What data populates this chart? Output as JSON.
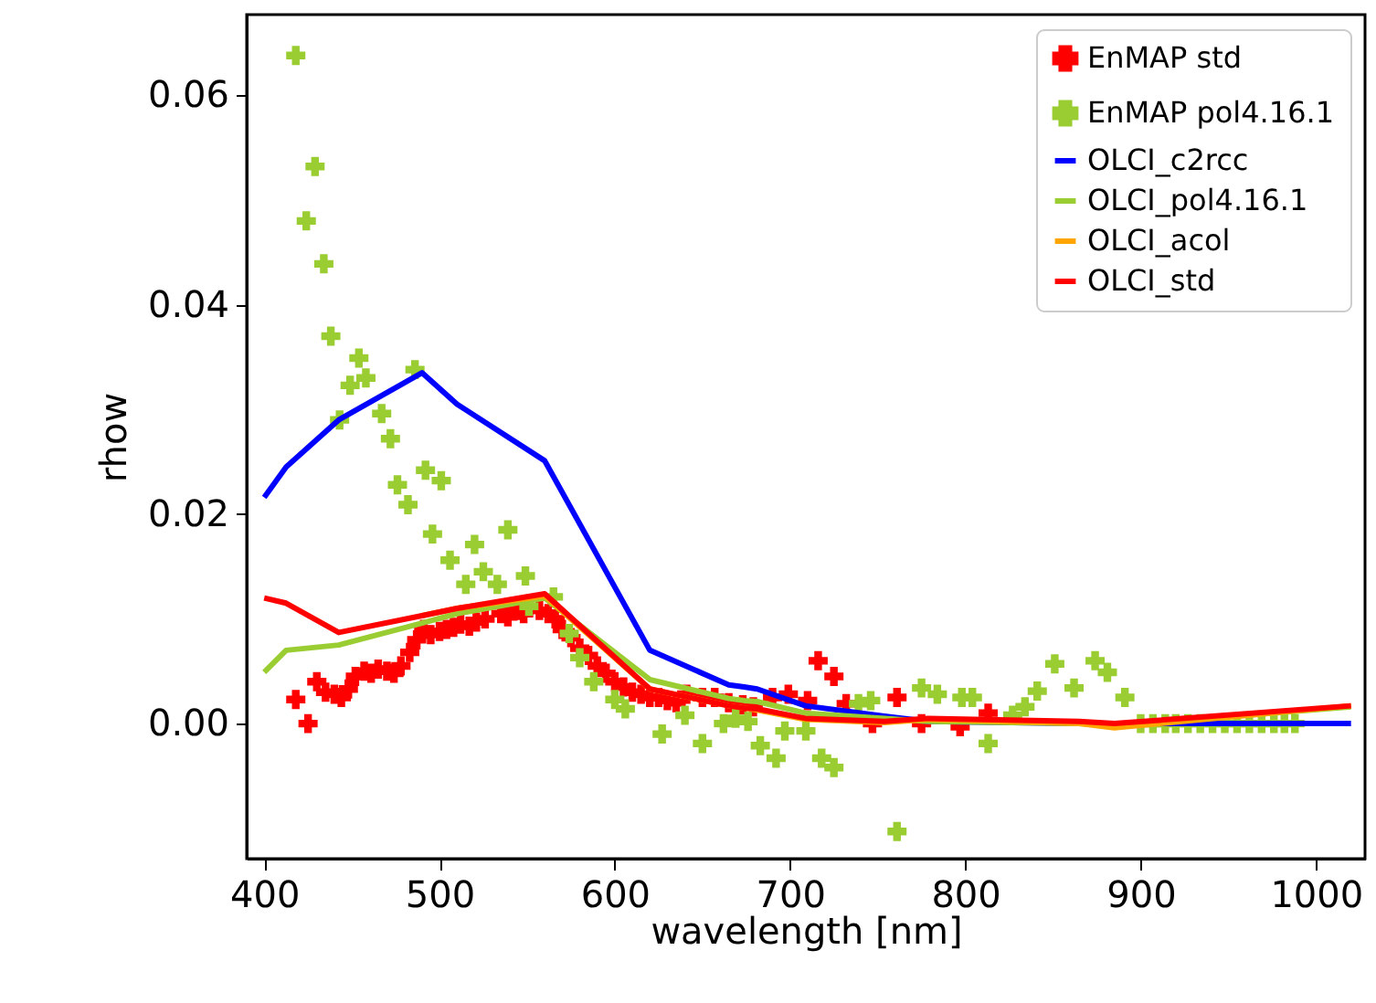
{
  "chart_data": {
    "type": "line",
    "xlabel": "wavelength [nm]",
    "ylabel": "rhow",
    "xlim": [
      390,
      1028
    ],
    "ylim": [
      -0.0129,
      0.0677
    ],
    "xticks": [
      400,
      500,
      600,
      700,
      800,
      900,
      1000
    ],
    "yticks": [
      {
        "value": 0,
        "label": "0.00"
      },
      0.02,
      0.04,
      0.06
    ],
    "grid": false,
    "legend": "top right",
    "line_style": "solid",
    "series": [
      {
        "name": "EnMAP std",
        "type": "scatter",
        "marker": "cross",
        "color": "#ff0000",
        "x": [
          418,
          425,
          430,
          435,
          440,
          444,
          448,
          452,
          457,
          461,
          465,
          470,
          474,
          478,
          483,
          487,
          491,
          495,
          500,
          504,
          508,
          512,
          517,
          521,
          526,
          535,
          539,
          544,
          548,
          557,
          562,
          566,
          570,
          575,
          580,
          585,
          590,
          595,
          600,
          605,
          610,
          615,
          620,
          625,
          630,
          635,
          641,
          650,
          657,
          665,
          673,
          679,
          690,
          699,
          710,
          716,
          725,
          732,
          747,
          761,
          775,
          797,
          813
        ],
        "values": [
          0.0023,
          0.0,
          0.004,
          0.003,
          0.0028,
          0.0025,
          0.0033,
          0.0045,
          0.005,
          0.0048,
          0.0052,
          0.005,
          0.0048,
          0.0055,
          0.0068,
          0.008,
          0.009,
          0.0085,
          0.0088,
          0.009,
          0.0092,
          0.0095,
          0.0093,
          0.0097,
          0.01,
          0.0105,
          0.0102,
          0.0108,
          0.0105,
          0.0108,
          0.0105,
          0.01,
          0.009,
          0.0082,
          0.0072,
          0.0065,
          0.0055,
          0.0048,
          0.004,
          0.0035,
          0.003,
          0.0028,
          0.0025,
          0.0025,
          0.0022,
          0.002,
          0.0028,
          0.0025,
          0.0025,
          0.002,
          0.0018,
          0.0016,
          0.0025,
          0.0028,
          0.0022,
          0.006,
          0.0045,
          0.0019,
          0.0,
          0.0025,
          0.0,
          -0.0003,
          0.001
        ]
      },
      {
        "name": "EnMAP pol4.16.1",
        "type": "scatter",
        "marker": "cross",
        "color": "#9acd32",
        "x": [
          418,
          424,
          429,
          434,
          438,
          443,
          449,
          454,
          458,
          467,
          472,
          476,
          482,
          486,
          492,
          496,
          501,
          506,
          515,
          520,
          525,
          533,
          539,
          549,
          551,
          565,
          574,
          580,
          588,
          600,
          606,
          627,
          640,
          650,
          662,
          669,
          676,
          683,
          692,
          697,
          709,
          718,
          725,
          739,
          746,
          761,
          775,
          784,
          798,
          804,
          813,
          827,
          834,
          841,
          851,
          862,
          874,
          881,
          891,
          900,
          907,
          914,
          920,
          927,
          934,
          941,
          948,
          955,
          962,
          969,
          976,
          982,
          988
        ],
        "values": [
          0.0638,
          0.048,
          0.0532,
          0.0439,
          0.037,
          0.029,
          0.0323,
          0.0349,
          0.033,
          0.0296,
          0.0272,
          0.0228,
          0.0209,
          0.0338,
          0.0242,
          0.0181,
          0.0232,
          0.0156,
          0.0133,
          0.0171,
          0.0145,
          0.0133,
          0.0185,
          0.0141,
          0.0112,
          0.0121,
          0.0086,
          0.0063,
          0.004,
          0.0023,
          0.0014,
          -0.001,
          0.0008,
          -0.0019,
          0.0,
          0.0005,
          0.0002,
          -0.0021,
          -0.0033,
          -0.0007,
          -0.0007,
          -0.0033,
          -0.0042,
          0.0019,
          0.0022,
          -0.0103,
          0.0034,
          0.0028,
          0.0025,
          0.0025,
          -0.0019,
          0.0008,
          0.0016,
          0.0031,
          0.0057,
          0.0034,
          0.006,
          0.0049,
          0.0025,
          0.0,
          0.0,
          0.0,
          0.0,
          0.0,
          0.0,
          0.0,
          0.0,
          0.0,
          0.0,
          0.0,
          0.0,
          0.0,
          0.0
        ]
      },
      {
        "name": "OLCI_c2rcc",
        "color": "#0000ff",
        "x": [
          400,
          412.5,
          442.5,
          490,
          510,
          560,
          620,
          665,
          673.75,
          681.25,
          708.75,
          753.75,
          778.75,
          865,
          885,
          1020
        ],
        "values": [
          0.0216,
          0.0245,
          0.029,
          0.0335,
          0.0305,
          0.0251,
          0.007,
          0.0037,
          0.0035,
          0.0033,
          0.0017,
          0.0007,
          0.0002,
          0.0,
          0.0,
          0.0
        ]
      },
      {
        "name": "OLCI_pol4.16.1",
        "color": "#9acd32",
        "x": [
          400,
          412.5,
          442.5,
          490,
          510,
          560,
          620,
          665,
          673.75,
          681.25,
          708.75,
          753.75,
          778.75,
          865,
          885,
          1020
        ],
        "values": [
          0.0049,
          0.007,
          0.0075,
          0.0096,
          0.0105,
          0.012,
          0.0042,
          0.0024,
          0.0022,
          0.0021,
          0.001,
          0.0005,
          0.0002,
          0.0,
          -0.0002,
          0.0016
        ]
      },
      {
        "name": "OLCI_acol",
        "color": "#ffa500",
        "x": [
          490,
          510,
          560,
          620,
          665,
          673.75,
          681.25,
          708.75,
          753.75,
          778.75,
          865,
          885,
          1020
        ],
        "values": [
          0.0103,
          0.011,
          0.0122,
          0.0033,
          0.0017,
          0.0015,
          0.0013,
          0.0004,
          0.0001,
          0.0004,
          0.0,
          -0.0004,
          0.0017
        ]
      },
      {
        "name": "OLCI_std",
        "color": "#ff0000",
        "x": [
          400,
          412.5,
          442.5,
          490,
          510,
          560,
          620,
          665,
          673.75,
          681.25,
          708.75,
          753.75,
          778.75,
          865,
          885,
          1020
        ],
        "values": [
          0.012,
          0.0115,
          0.0087,
          0.0103,
          0.011,
          0.0124,
          0.0033,
          0.0017,
          0.0015,
          0.0014,
          0.0005,
          0.0002,
          0.0005,
          0.0002,
          0.0,
          0.0017
        ]
      }
    ]
  }
}
